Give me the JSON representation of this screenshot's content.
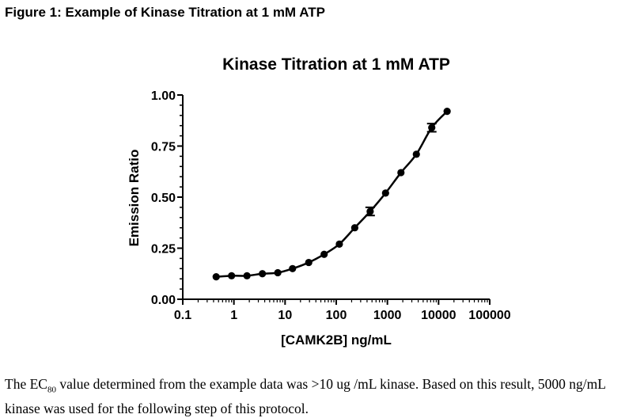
{
  "figure": {
    "caption": "Figure 1: Example of Kinase Titration at 1 mM ATP"
  },
  "chart_data": {
    "type": "scatter",
    "title": "Kinase Titration at 1 mM ATP",
    "xlabel": "[CAMK2B] ng/mL",
    "ylabel": "Emission Ratio",
    "xscale": "log",
    "xlim": [
      0.1,
      100000
    ],
    "ylim": [
      0,
      1.0
    ],
    "x_tick_labels": [
      "0.1",
      "1",
      "10",
      "100",
      "1000",
      "10000",
      "100000"
    ],
    "x_ticks": [
      0.1,
      1,
      10,
      100,
      1000,
      10000,
      100000
    ],
    "y_tick_labels": [
      "0.00",
      "0.25",
      "0.50",
      "0.75",
      "1.00"
    ],
    "y_ticks": [
      0,
      0.25,
      0.5,
      0.75,
      1.0
    ],
    "grid": false,
    "fit_curve": "sigmoidal",
    "series": [
      {
        "x": [
          0.45,
          0.9,
          1.8,
          3.6,
          7.2,
          14,
          29,
          58,
          115,
          230,
          460,
          920,
          1840,
          3680,
          7360,
          14700
        ],
        "y": [
          0.11,
          0.115,
          0.115,
          0.125,
          0.13,
          0.15,
          0.18,
          0.22,
          0.27,
          0.35,
          0.43,
          0.52,
          0.62,
          0.71,
          0.84,
          0.92
        ],
        "error": [
          0,
          0,
          0,
          0,
          0,
          0,
          0,
          0,
          0,
          0,
          0.02,
          0,
          0,
          0,
          0.02,
          0
        ]
      }
    ]
  },
  "body": {
    "text_before": "The EC",
    "subscript": "80",
    "text_after": " value determined from the example data was >10 ug /mL kinase.  Based on this result, 5000 ng/mL kinase was used for the following step of this protocol."
  }
}
